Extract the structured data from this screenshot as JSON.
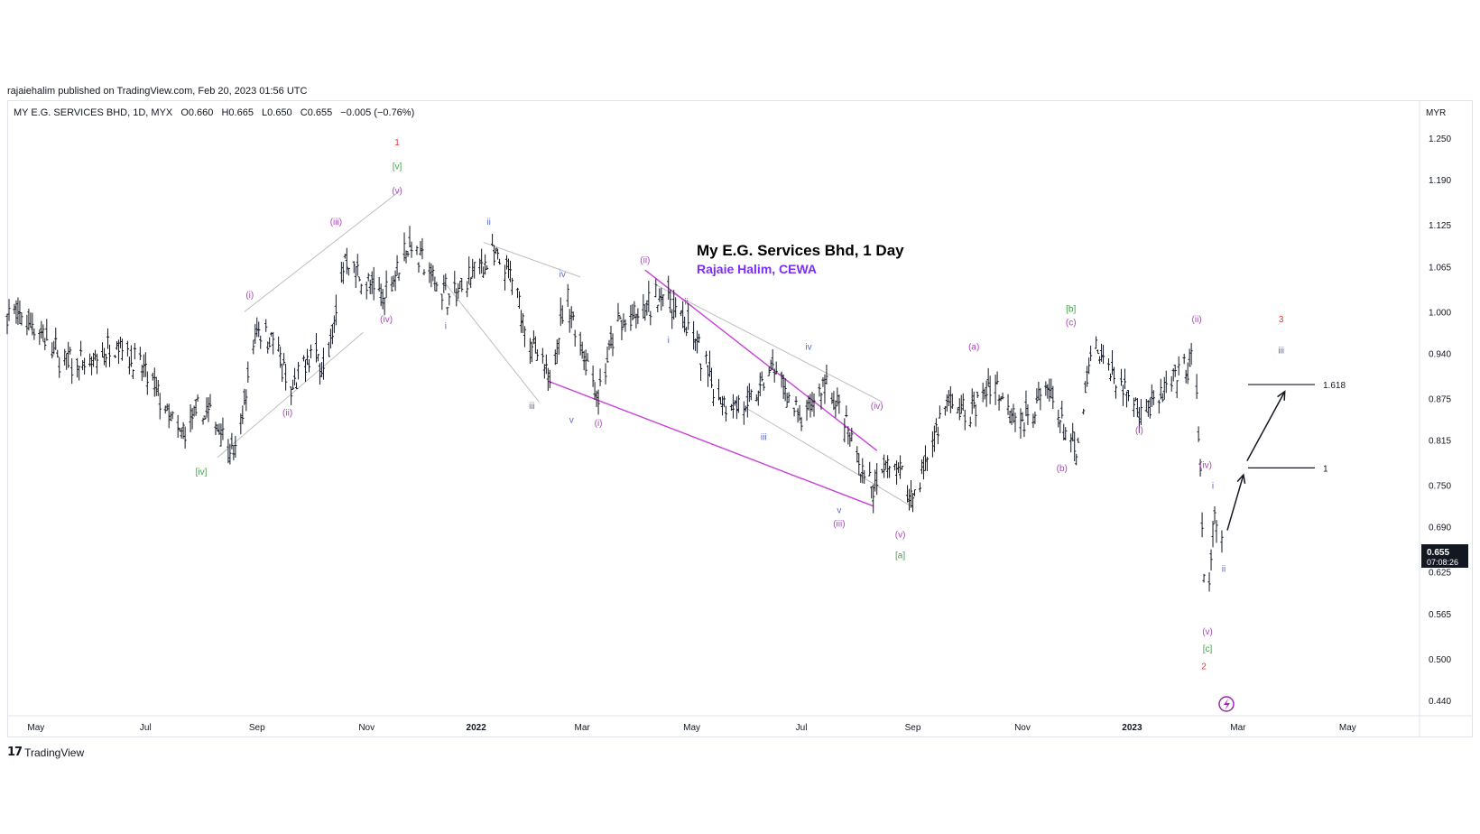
{
  "published": "rajaiehalim published on TradingView.com, Feb 20, 2023 01:56 UTC",
  "legend": {
    "symbol": "MY E.G. SERVICES BHD, 1D, MYX",
    "open": "O0.660",
    "high": "H0.665",
    "low": "L0.650",
    "close": "C0.655",
    "change": "−0.005 (−0.76%)"
  },
  "annotation": {
    "title": "My E.G. Services Bhd, 1 Day",
    "author": "Rajaie Halim, CEWA"
  },
  "brand": "TradingView",
  "price_tag": {
    "price": "0.655",
    "countdown": "07:08:26"
  },
  "colors": {
    "bars": "#131722",
    "red_wave": "#e53935",
    "green_wave": "#43a047",
    "purple_wave": "#ab47bc",
    "blue_wave": "#5c6bc0",
    "trend_purple": "#c840d8",
    "channel_grey": "#bdbdbd"
  },
  "chart_data": {
    "type": "ohlc",
    "currency": "MYR",
    "ylim": [
      0.44,
      1.28
    ],
    "y_ticks": [
      "1.250",
      "1.190",
      "1.125",
      "1.065",
      "1.000",
      "0.940",
      "0.875",
      "0.815",
      "0.750",
      "0.690",
      "0.625",
      "0.565",
      "0.500",
      "0.440"
    ],
    "x_ticks": [
      "May",
      "Jul",
      "Sep",
      "Nov",
      "2022",
      "Mar",
      "May",
      "Jul",
      "Sep",
      "Nov",
      "2023",
      "Mar",
      "May"
    ],
    "x_range": [
      "2021-04-15",
      "2023-06-10"
    ],
    "fib_levels": [
      {
        "label": "1.618",
        "price": 0.895
      },
      {
        "label": "1",
        "price": 0.775
      }
    ],
    "price_series": [
      [
        "2021-04-15",
        1.0
      ],
      [
        "2021-05-01",
        0.98
      ],
      [
        "2021-05-15",
        0.93
      ],
      [
        "2021-06-01",
        0.92
      ],
      [
        "2021-06-15",
        0.96
      ],
      [
        "2021-07-01",
        0.91
      ],
      [
        "2021-07-10",
        0.87
      ],
      [
        "2021-07-20",
        0.82
      ],
      [
        "2021-08-01",
        0.86
      ],
      [
        "2021-08-10",
        0.84
      ],
      [
        "2021-08-20",
        0.79
      ],
      [
        "2021-09-01",
        0.98
      ],
      [
        "2021-09-10",
        0.96
      ],
      [
        "2021-09-20",
        0.88
      ],
      [
        "2021-10-01",
        0.94
      ],
      [
        "2021-10-10",
        0.92
      ],
      [
        "2021-10-20",
        1.08
      ],
      [
        "2021-11-01",
        1.04
      ],
      [
        "2021-11-10",
        1.02
      ],
      [
        "2021-11-25",
        1.1
      ],
      [
        "2021-12-10",
        1.04
      ],
      [
        "2021-12-20",
        1.02
      ],
      [
        "2022-01-01",
        1.06
      ],
      [
        "2022-01-10",
        1.08
      ],
      [
        "2022-01-20",
        1.05
      ],
      [
        "2022-02-01",
        0.95
      ],
      [
        "2022-02-10",
        0.9
      ],
      [
        "2022-02-20",
        1.02
      ],
      [
        "2022-03-01",
        0.95
      ],
      [
        "2022-03-10",
        0.88
      ],
      [
        "2022-03-20",
        0.98
      ],
      [
        "2022-04-01",
        0.99
      ],
      [
        "2022-04-15",
        1.03
      ],
      [
        "2022-05-01",
        0.97
      ],
      [
        "2022-05-15",
        0.88
      ],
      [
        "2022-06-01",
        0.86
      ],
      [
        "2022-06-15",
        0.92
      ],
      [
        "2022-07-01",
        0.84
      ],
      [
        "2022-07-15",
        0.9
      ],
      [
        "2022-08-01",
        0.79
      ],
      [
        "2022-08-10",
        0.74
      ],
      [
        "2022-08-20",
        0.79
      ],
      [
        "2022-09-01",
        0.73
      ],
      [
        "2022-09-10",
        0.8
      ],
      [
        "2022-09-20",
        0.87
      ],
      [
        "2022-10-01",
        0.85
      ],
      [
        "2022-10-15",
        0.9
      ],
      [
        "2022-11-01",
        0.84
      ],
      [
        "2022-11-15",
        0.89
      ],
      [
        "2022-12-01",
        0.79
      ],
      [
        "2022-12-10",
        0.95
      ],
      [
        "2022-12-25",
        0.9
      ],
      [
        "2023-01-05",
        0.86
      ],
      [
        "2023-01-15",
        0.87
      ],
      [
        "2023-01-25",
        0.9
      ],
      [
        "2023-02-05",
        0.93
      ],
      [
        "2023-02-08",
        0.78
      ],
      [
        "2023-02-10",
        0.6
      ],
      [
        "2023-02-13",
        0.6
      ],
      [
        "2023-02-16",
        0.71
      ],
      [
        "2023-02-20",
        0.655
      ]
    ],
    "wave_labels": [
      {
        "t": "1",
        "d": "2021-11-18",
        "p": 1.24,
        "c": "red_wave"
      },
      {
        "t": "[v]",
        "d": "2021-11-18",
        "p": 1.205,
        "c": "green_wave"
      },
      {
        "t": "(v)",
        "d": "2021-11-18",
        "p": 1.17,
        "c": "purple_wave"
      },
      {
        "t": "(iii)",
        "d": "2021-10-15",
        "p": 1.125,
        "c": "purple_wave"
      },
      {
        "t": "(i)",
        "d": "2021-08-28",
        "p": 1.02,
        "c": "purple_wave"
      },
      {
        "t": "(iv)",
        "d": "2021-11-12",
        "p": 0.985,
        "c": "purple_wave"
      },
      {
        "t": "(ii)",
        "d": "2021-09-18",
        "p": 0.85,
        "c": "purple_wave"
      },
      {
        "t": "[iv]",
        "d": "2021-08-01",
        "p": 0.765,
        "c": "green_wave"
      },
      {
        "t": "ii",
        "d": "2022-01-08",
        "p": 1.125,
        "c": "blue_wave"
      },
      {
        "t": "i",
        "d": "2021-12-15",
        "p": 0.975,
        "c": "blue_wave"
      },
      {
        "t": "iii",
        "d": "2022-02-01",
        "p": 0.86,
        "c": "blue_wave"
      },
      {
        "t": "iv",
        "d": "2022-02-18",
        "p": 1.05,
        "c": "blue_wave"
      },
      {
        "t": "v",
        "d": "2022-02-23",
        "p": 0.84,
        "c": "blue_wave"
      },
      {
        "t": "(i)",
        "d": "2022-03-10",
        "p": 0.835,
        "c": "purple_wave"
      },
      {
        "t": "(ii)",
        "d": "2022-04-05",
        "p": 1.07,
        "c": "purple_wave"
      },
      {
        "t": "i",
        "d": "2022-04-18",
        "p": 0.955,
        "c": "blue_wave"
      },
      {
        "t": "ii",
        "d": "2022-04-28",
        "p": 1.01,
        "c": "blue_wave"
      },
      {
        "t": "iii",
        "d": "2022-06-10",
        "p": 0.815,
        "c": "blue_wave"
      },
      {
        "t": "iv",
        "d": "2022-07-05",
        "p": 0.945,
        "c": "blue_wave"
      },
      {
        "t": "(iv)",
        "d": "2022-08-12",
        "p": 0.86,
        "c": "purple_wave"
      },
      {
        "t": "v",
        "d": "2022-07-22",
        "p": 0.71,
        "c": "blue_wave"
      },
      {
        "t": "(iii)",
        "d": "2022-07-22",
        "p": 0.69,
        "c": "purple_wave"
      },
      {
        "t": "(v)",
        "d": "2022-08-25",
        "p": 0.675,
        "c": "purple_wave"
      },
      {
        "t": "[a]",
        "d": "2022-08-25",
        "p": 0.645,
        "c": "green_wave"
      },
      {
        "t": "(a)",
        "d": "2022-10-05",
        "p": 0.945,
        "c": "purple_wave"
      },
      {
        "t": "[b]",
        "d": "2022-11-28",
        "p": 1.0,
        "c": "green_wave"
      },
      {
        "t": "(c)",
        "d": "2022-11-28",
        "p": 0.98,
        "c": "purple_wave"
      },
      {
        "t": "(b)",
        "d": "2022-11-23",
        "p": 0.77,
        "c": "purple_wave"
      },
      {
        "t": "(i)",
        "d": "2023-01-05",
        "p": 0.825,
        "c": "purple_wave"
      },
      {
        "t": "(ii)",
        "d": "2023-02-06",
        "p": 0.985,
        "c": "purple_wave"
      },
      {
        "t": "(iv)",
        "d": "2023-02-11",
        "p": 0.775,
        "c": "purple_wave"
      },
      {
        "t": "i",
        "d": "2023-02-15",
        "p": 0.745,
        "c": "blue_wave"
      },
      {
        "t": "ii",
        "d": "2023-02-21",
        "p": 0.625,
        "c": "blue_wave"
      },
      {
        "t": "(v)",
        "d": "2023-02-12",
        "p": 0.535,
        "c": "purple_wave"
      },
      {
        "t": "[c]",
        "d": "2023-02-12",
        "p": 0.51,
        "c": "green_wave"
      },
      {
        "t": "2",
        "d": "2023-02-10",
        "p": 0.485,
        "c": "red_wave"
      },
      {
        "t": "3",
        "d": "2023-03-25",
        "p": 0.985,
        "c": "red_wave"
      },
      {
        "t": "iii",
        "d": "2023-03-25",
        "p": 0.94,
        "c": "blue_wave"
      }
    ],
    "trend_lines": [
      {
        "d1": "2021-08-10",
        "p1": 0.79,
        "d2": "2021-10-30",
        "p2": 0.97,
        "c": "channel_grey"
      },
      {
        "d1": "2021-08-25",
        "p1": 1.0,
        "d2": "2021-11-20",
        "p2": 1.175,
        "c": "channel_grey"
      },
      {
        "d1": "2022-01-05",
        "p1": 1.1,
        "d2": "2022-02-28",
        "p2": 1.05,
        "c": "channel_grey"
      },
      {
        "d1": "2021-12-15",
        "p1": 1.04,
        "d2": "2022-02-05",
        "p2": 0.87,
        "c": "channel_grey"
      },
      {
        "d1": "2022-04-10",
        "p1": 1.04,
        "d2": "2022-08-15",
        "p2": 0.87,
        "c": "channel_grey"
      },
      {
        "d1": "2022-06-01",
        "p1": 0.86,
        "d2": "2022-08-31",
        "p2": 0.72,
        "c": "channel_grey"
      },
      {
        "d1": "2022-02-10",
        "p1": 0.9,
        "d2": "2022-08-10",
        "p2": 0.72,
        "c": "trend_purple"
      },
      {
        "d1": "2022-04-05",
        "p1": 1.06,
        "d2": "2022-08-12",
        "p2": 0.8,
        "c": "trend_purple"
      }
    ],
    "projection_arrows": [
      {
        "d1": "2023-02-23",
        "p1": 0.685,
        "d2": "2023-03-04",
        "p2": 0.765
      },
      {
        "d1": "2023-03-06",
        "p1": 0.785,
        "d2": "2023-03-27",
        "p2": 0.885
      }
    ]
  }
}
